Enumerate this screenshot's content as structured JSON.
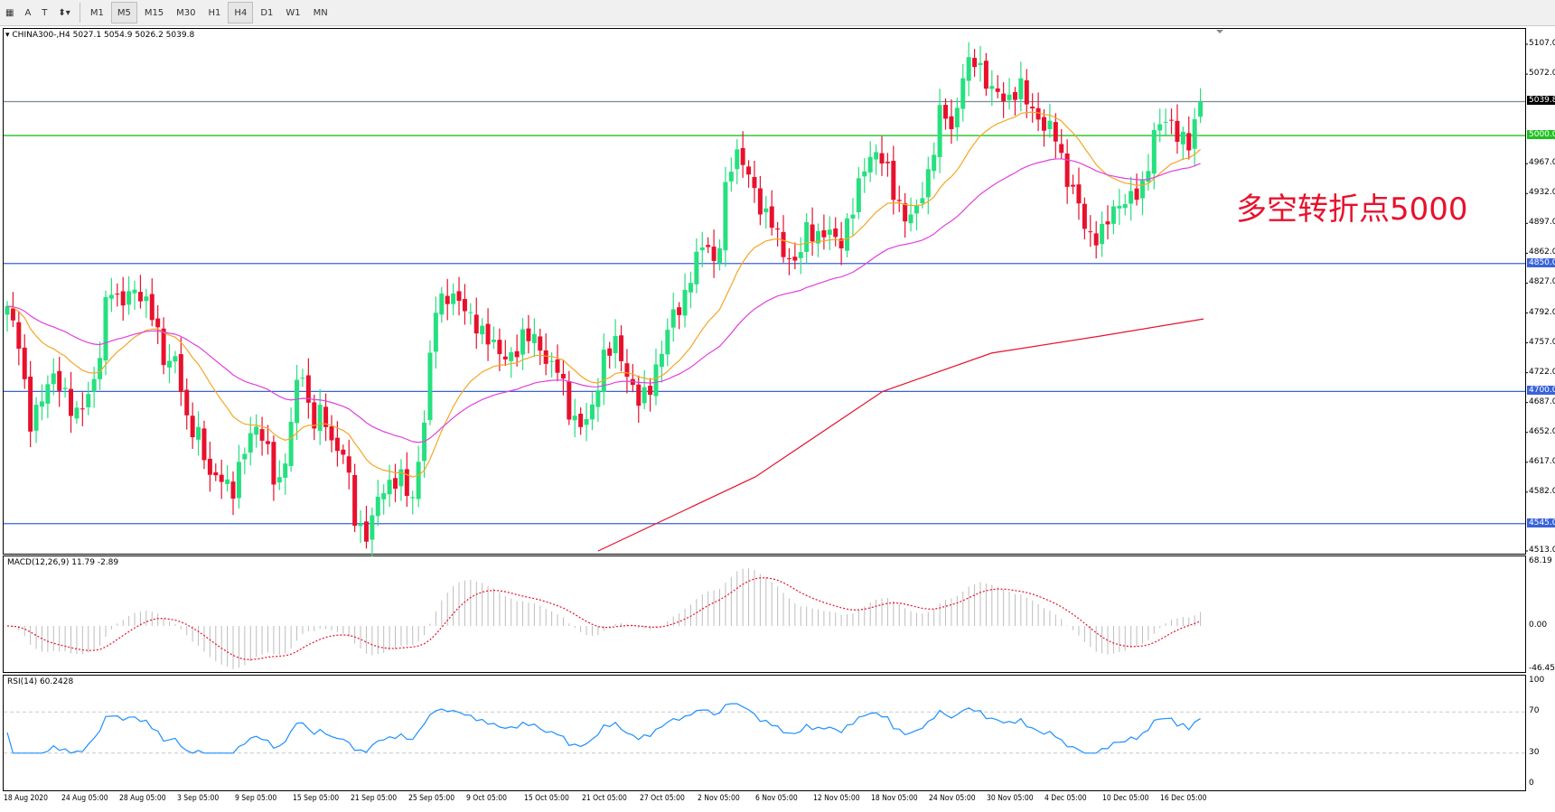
{
  "toolbar": {
    "tools": [
      "A",
      "T"
    ],
    "timeframes": [
      "M1",
      "M5",
      "M15",
      "M30",
      "H1",
      "H4",
      "D1",
      "W1",
      "MN"
    ],
    "active": "H4"
  },
  "chart": {
    "header": "CHINA300-,H4  5027.1 5054.9 5026.2 5039.8",
    "annotation": "多空转折点5000",
    "price_ticks": [
      "5107.0",
      "5072.0",
      "4967.0",
      "4932.0",
      "4897.0",
      "4862.0",
      "4827.0",
      "4792.0",
      "4757.0",
      "4722.0",
      "4687.0",
      "4652.0",
      "4617.0",
      "4582.0",
      "4513.0"
    ],
    "levels": [
      {
        "label": "5039.8",
        "price": 5039.8,
        "color": "#000000",
        "line": "#7a8a99"
      },
      {
        "label": "5000.0",
        "price": 5000,
        "color": "#22c022",
        "line": "#22c022"
      },
      {
        "label": "4850.0",
        "price": 4850,
        "color": "#3a63d8",
        "line": "#3a63d8"
      },
      {
        "label": "4700.0",
        "price": 4700,
        "color": "#3a63d8",
        "line": "#3a63d8"
      },
      {
        "label": "4545.0",
        "price": 4545,
        "color": "#3a63d8",
        "line": "#3a63d8"
      }
    ],
    "colors": {
      "bull": "#26e07f",
      "bear": "#e8112d",
      "ma_fast": "#f5a623",
      "ma_mid": "#e040e0",
      "ma_slow": "#e8112d"
    }
  },
  "macd": {
    "header": "MACD(12,26,9) 11.79 -2.89",
    "ticks": [
      "68.19",
      "0.00",
      "-46.45"
    ]
  },
  "rsi": {
    "header": "RSI(14) 60.2428",
    "ticks": [
      "100",
      "70",
      "30",
      "0"
    ]
  },
  "dates": [
    "18 Aug 2020",
    "24 Aug 05:00",
    "28 Aug 05:00",
    "3 Sep 05:00",
    "9 Sep 05:00",
    "15 Sep 05:00",
    "21 Sep 05:00",
    "25 Sep 05:00",
    "9 Oct 05:00",
    "15 Oct 05:00",
    "21 Oct 05:00",
    "27 Oct 05:00",
    "2 Nov 05:00",
    "6 Nov 05:00",
    "12 Nov 05:00",
    "18 Nov 05:00",
    "24 Nov 05:00",
    "30 Nov 05:00",
    "4 Dec 05:00",
    "10 Dec 05:00",
    "16 Dec 05:00"
  ],
  "chart_data": {
    "type": "candlestick",
    "ylim": [
      4513,
      5107
    ],
    "approx_closes": [
      4800,
      4760,
      4660,
      4690,
      4720,
      4700,
      4670,
      4690,
      4720,
      4830,
      4800,
      4820,
      4810,
      4790,
      4730,
      4740,
      4660,
      4650,
      4600,
      4600,
      4580,
      4630,
      4660,
      4640,
      4580,
      4640,
      4740,
      4660,
      4680,
      4630,
      4630,
      4540,
      4530,
      4580,
      4590,
      4600,
      4570,
      4660,
      4800,
      4810,
      4810,
      4790,
      4770,
      4760,
      4740,
      4740,
      4770,
      4760,
      4730,
      4730,
      4670,
      4660,
      4680,
      4740,
      4760,
      4720,
      4690,
      4700,
      4740,
      4790,
      4800,
      4850,
      4880,
      4840,
      4960,
      4980,
      4950,
      4910,
      4900,
      4860,
      4850,
      4890,
      4880,
      4890,
      4870,
      4910,
      4960,
      4980,
      4970,
      4920,
      4900,
      4920,
      4960,
      5040,
      5000,
      5080,
      5090,
      5060,
      5050,
      5040,
      5060,
      5030,
      5010,
      5010,
      4950,
      4930,
      4880,
      4880,
      4910,
      4920,
      4930,
      4940,
      5010,
      5020,
      5000,
      4990,
      5039.8
    ],
    "ma_slow": [
      [
        0.0,
        4513
      ],
      [
        0.26,
        4600
      ],
      [
        0.47,
        4700
      ],
      [
        0.65,
        4745
      ],
      [
        0.83,
        4765
      ],
      [
        1.0,
        4785
      ]
    ]
  }
}
